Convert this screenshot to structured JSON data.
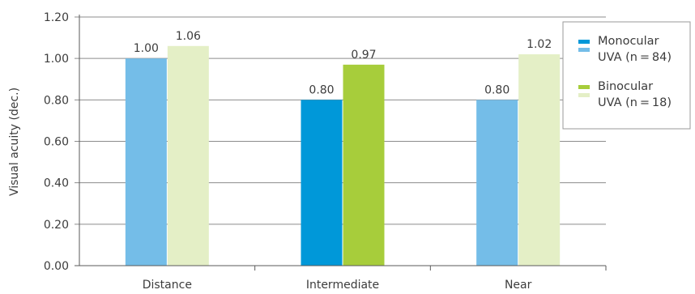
{
  "chart_data": {
    "type": "bar",
    "categories": [
      "Distance",
      "Intermediate",
      "Near"
    ],
    "ylabel": "Visual acuity (dec.)",
    "ylim": [
      0,
      1.2
    ],
    "yticks": [
      "0.00",
      "0.20",
      "0.40",
      "0.60",
      "0.80",
      "1.00",
      "1.20"
    ],
    "grid": true,
    "legend_position": "right",
    "series": [
      {
        "name": "Monocular UVA (n = 84)",
        "values": [
          1.0,
          0.8,
          0.8
        ],
        "labels": [
          "1.00",
          "0.80",
          "0.80"
        ],
        "colors": [
          "#74bde8",
          "#0098d9",
          "#74bde8"
        ]
      },
      {
        "name": "Binocular UVA (n = 18)",
        "values": [
          1.06,
          0.97,
          1.02
        ],
        "labels": [
          "1.06",
          "0.97",
          "1.02"
        ],
        "colors": [
          "#e4efc6",
          "#a7cd3b",
          "#e4efc6"
        ]
      }
    ],
    "legend": [
      {
        "line1": "Monocular",
        "line2": "UVA (n = 84)",
        "swatch_dark": "#0098d9",
        "swatch_light": "#74bde8"
      },
      {
        "line1": "Binocular",
        "line2": "UVA (n = 18)",
        "swatch_dark": "#a7cd3b",
        "swatch_light": "#e4efc6"
      }
    ]
  }
}
